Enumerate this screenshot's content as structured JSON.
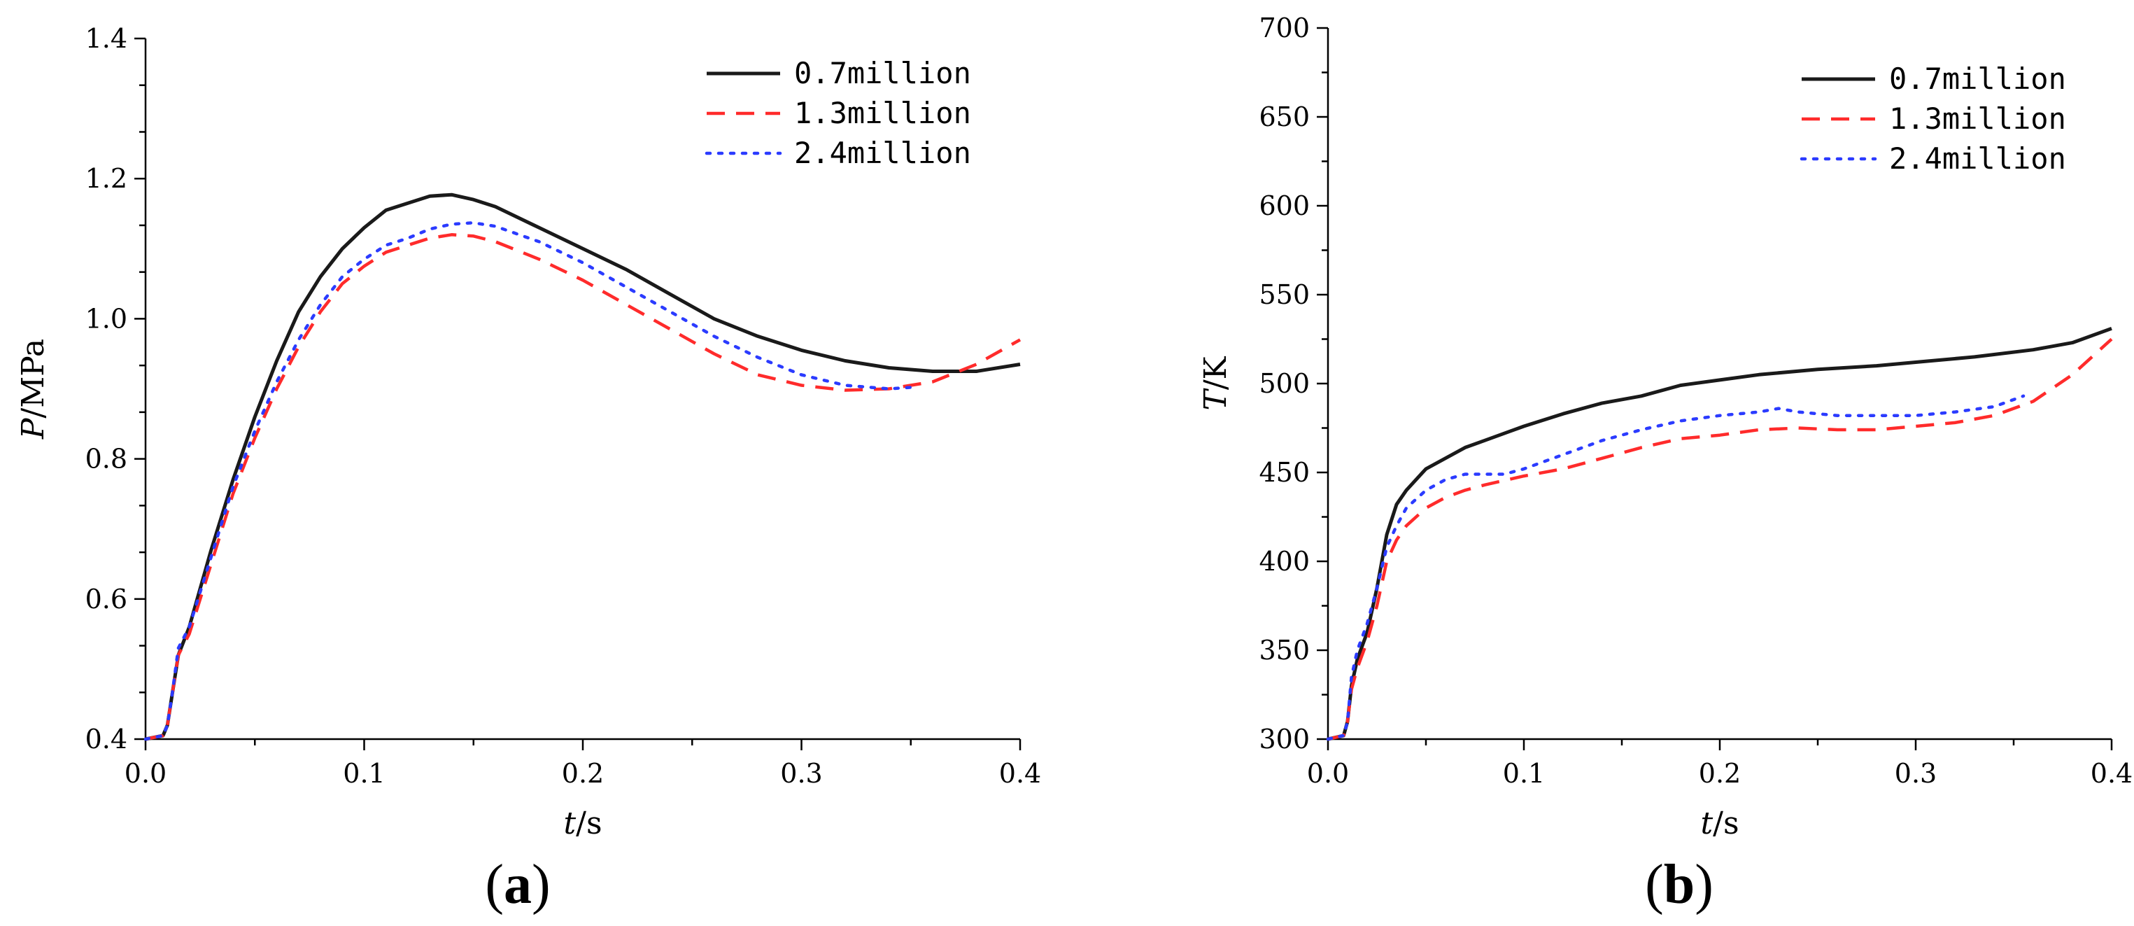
{
  "chart_data": [
    {
      "type": "line",
      "panel_label": "a",
      "xlabel_var": "t",
      "xlabel_unit": "/s",
      "ylabel_var": "P",
      "ylabel_unit": "/MPa",
      "xlim": [
        0.0,
        0.4
      ],
      "ylim": [
        0.4,
        1.4
      ],
      "xticks": [
        0.0,
        0.1,
        0.2,
        0.3,
        0.4
      ],
      "yticks": [
        0.4,
        0.6,
        0.8,
        1.0,
        1.2,
        1.4
      ],
      "xtick_labels": [
        "0.0",
        "0.1",
        "0.2",
        "0.3",
        "0.4"
      ],
      "ytick_labels": [
        "0.4",
        "0.6",
        "0.8",
        "1.0",
        "1.2",
        "1.4"
      ],
      "legend_position": "top-right",
      "series": [
        {
          "name": "0.7million",
          "color": "#1a1a1a",
          "style": "solid",
          "x": [
            0.0,
            0.008,
            0.01,
            0.012,
            0.015,
            0.02,
            0.03,
            0.04,
            0.05,
            0.06,
            0.07,
            0.08,
            0.09,
            0.1,
            0.11,
            0.12,
            0.13,
            0.14,
            0.15,
            0.16,
            0.18,
            0.2,
            0.22,
            0.24,
            0.26,
            0.28,
            0.3,
            0.32,
            0.34,
            0.36,
            0.38,
            0.4
          ],
          "y": [
            0.4,
            0.405,
            0.42,
            0.46,
            0.52,
            0.56,
            0.67,
            0.77,
            0.86,
            0.94,
            1.01,
            1.06,
            1.1,
            1.13,
            1.155,
            1.165,
            1.175,
            1.177,
            1.17,
            1.16,
            1.13,
            1.1,
            1.07,
            1.035,
            1.0,
            0.975,
            0.955,
            0.94,
            0.93,
            0.925,
            0.925,
            0.935
          ]
        },
        {
          "name": "1.3million",
          "color": "#ff2b2b",
          "style": "dashed",
          "x": [
            0.0,
            0.008,
            0.01,
            0.012,
            0.015,
            0.02,
            0.03,
            0.04,
            0.05,
            0.06,
            0.07,
            0.08,
            0.09,
            0.1,
            0.11,
            0.12,
            0.13,
            0.14,
            0.15,
            0.16,
            0.18,
            0.2,
            0.22,
            0.24,
            0.26,
            0.28,
            0.3,
            0.32,
            0.34,
            0.36,
            0.38,
            0.4
          ],
          "y": [
            0.4,
            0.405,
            0.42,
            0.46,
            0.52,
            0.55,
            0.65,
            0.75,
            0.83,
            0.9,
            0.96,
            1.01,
            1.05,
            1.075,
            1.095,
            1.105,
            1.115,
            1.12,
            1.118,
            1.11,
            1.085,
            1.055,
            1.02,
            0.985,
            0.95,
            0.92,
            0.905,
            0.898,
            0.9,
            0.91,
            0.935,
            0.97
          ]
        },
        {
          "name": "2.4million",
          "color": "#2b3bff",
          "style": "dotted",
          "x": [
            0.0,
            0.008,
            0.01,
            0.012,
            0.015,
            0.02,
            0.03,
            0.04,
            0.05,
            0.06,
            0.07,
            0.08,
            0.09,
            0.1,
            0.11,
            0.12,
            0.13,
            0.14,
            0.15,
            0.16,
            0.18,
            0.2,
            0.22,
            0.24,
            0.26,
            0.28,
            0.3,
            0.32,
            0.34,
            0.35
          ],
          "y": [
            0.4,
            0.405,
            0.42,
            0.46,
            0.53,
            0.56,
            0.66,
            0.76,
            0.84,
            0.91,
            0.97,
            1.02,
            1.06,
            1.085,
            1.105,
            1.115,
            1.128,
            1.135,
            1.137,
            1.132,
            1.11,
            1.08,
            1.045,
            1.01,
            0.975,
            0.945,
            0.92,
            0.905,
            0.9,
            0.902
          ]
        }
      ]
    },
    {
      "type": "line",
      "panel_label": "b",
      "xlabel_var": "t",
      "xlabel_unit": "/s",
      "ylabel_var": "T",
      "ylabel_unit": "/K",
      "xlim": [
        0.0,
        0.4
      ],
      "ylim": [
        300,
        700
      ],
      "xticks": [
        0.0,
        0.1,
        0.2,
        0.3,
        0.4
      ],
      "yticks": [
        300,
        350,
        400,
        450,
        500,
        550,
        600,
        650,
        700
      ],
      "xtick_labels": [
        "0.0",
        "0.1",
        "0.2",
        "0.3",
        "0.4"
      ],
      "ytick_labels": [
        "300",
        "350",
        "400",
        "450",
        "500",
        "550",
        "600",
        "650",
        "700"
      ],
      "legend_position": "top-right",
      "series": [
        {
          "name": "0.7million",
          "color": "#1a1a1a",
          "style": "solid",
          "x": [
            0.0,
            0.008,
            0.01,
            0.012,
            0.015,
            0.02,
            0.025,
            0.03,
            0.035,
            0.04,
            0.05,
            0.06,
            0.07,
            0.08,
            0.1,
            0.12,
            0.14,
            0.16,
            0.18,
            0.2,
            0.22,
            0.25,
            0.28,
            0.3,
            0.33,
            0.36,
            0.38,
            0.4
          ],
          "y": [
            300,
            302,
            310,
            330,
            345,
            360,
            385,
            415,
            432,
            440,
            452,
            458,
            464,
            468,
            476,
            483,
            489,
            493,
            499,
            502,
            505,
            508,
            510,
            512,
            515,
            519,
            523,
            531
          ]
        },
        {
          "name": "1.3million",
          "color": "#ff2b2b",
          "style": "dashed",
          "x": [
            0.0,
            0.008,
            0.01,
            0.012,
            0.015,
            0.02,
            0.025,
            0.03,
            0.035,
            0.04,
            0.05,
            0.06,
            0.07,
            0.08,
            0.1,
            0.12,
            0.14,
            0.16,
            0.18,
            0.2,
            0.22,
            0.24,
            0.26,
            0.28,
            0.3,
            0.32,
            0.34,
            0.36,
            0.38,
            0.4
          ],
          "y": [
            300,
            302,
            310,
            328,
            340,
            355,
            375,
            400,
            412,
            420,
            430,
            436,
            440,
            443,
            448,
            452,
            458,
            464,
            469,
            471,
            474,
            475,
            474,
            474,
            476,
            478,
            482,
            490,
            505,
            525
          ]
        },
        {
          "name": "2.4million",
          "color": "#2b3bff",
          "style": "dotted",
          "x": [
            0.0,
            0.008,
            0.01,
            0.012,
            0.015,
            0.02,
            0.025,
            0.03,
            0.035,
            0.04,
            0.05,
            0.06,
            0.07,
            0.08,
            0.09,
            0.1,
            0.12,
            0.14,
            0.16,
            0.18,
            0.2,
            0.22,
            0.23,
            0.24,
            0.26,
            0.28,
            0.3,
            0.32,
            0.34,
            0.355
          ],
          "y": [
            300,
            302,
            310,
            335,
            350,
            365,
            385,
            408,
            420,
            430,
            440,
            446,
            449,
            449,
            449,
            452,
            460,
            468,
            474,
            479,
            482,
            484,
            486,
            484,
            482,
            482,
            482,
            484,
            487,
            493
          ]
        }
      ]
    }
  ]
}
